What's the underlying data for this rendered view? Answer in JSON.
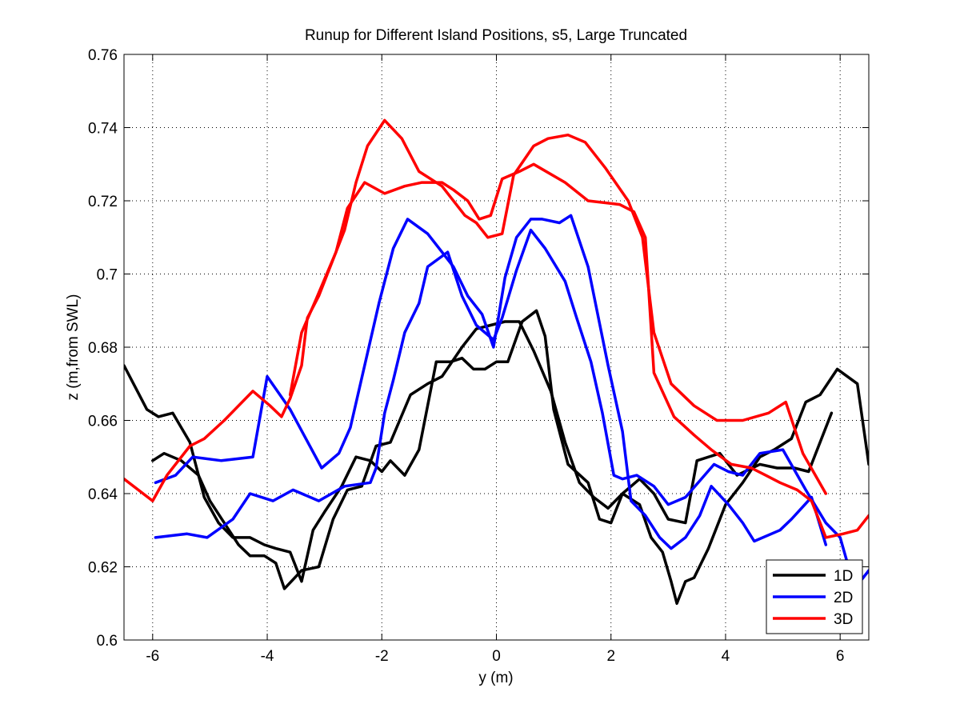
{
  "chart_data": {
    "type": "line",
    "title": "Runup for Different Island Positions, s5, Large Truncated",
    "xlabel": "y (m)",
    "ylabel": "z (m,from SWL)",
    "xlim": [
      -6.5,
      6.5
    ],
    "ylim": [
      0.6,
      0.76
    ],
    "xticks": [
      -6,
      -4,
      -2,
      0,
      2,
      4,
      6
    ],
    "xtick_labels": [
      "-6",
      "-4",
      "-2",
      "0",
      "2",
      "4",
      "6"
    ],
    "yticks": [
      0.6,
      0.62,
      0.64,
      0.66,
      0.68,
      0.7,
      0.72,
      0.74,
      0.76
    ],
    "ytick_labels": [
      "0.6",
      "0.62",
      "0.64",
      "0.66",
      "0.68",
      "0.7",
      "0.72",
      "0.74",
      "0.76"
    ],
    "grid": true,
    "legend_position": "bottom-right",
    "legend": [
      {
        "label": "1D",
        "color": "#000000"
      },
      {
        "label": "2D",
        "color": "#0000ff"
      },
      {
        "label": "3D",
        "color": "#ff0000"
      }
    ],
    "series": [
      {
        "legend": "1D",
        "color": "#000000",
        "points": [
          [
            -6.5,
            0.675
          ],
          [
            -6.3,
            0.669
          ],
          [
            -6.1,
            0.663
          ],
          [
            -5.9,
            0.661
          ],
          [
            -5.65,
            0.662
          ],
          [
            -5.35,
            0.654
          ],
          [
            -5.1,
            0.639
          ],
          [
            -4.85,
            0.632
          ],
          [
            -4.6,
            0.628
          ],
          [
            -4.3,
            0.628
          ],
          [
            -4.05,
            0.626
          ],
          [
            -3.85,
            0.625
          ],
          [
            -3.6,
            0.624
          ],
          [
            -3.4,
            0.616
          ],
          [
            -3.2,
            0.63
          ],
          [
            -3.0,
            0.635
          ],
          [
            -2.7,
            0.642
          ],
          [
            -2.45,
            0.65
          ],
          [
            -2.2,
            0.649
          ],
          [
            -2.0,
            0.646
          ],
          [
            -1.85,
            0.649
          ],
          [
            -1.6,
            0.645
          ],
          [
            -1.35,
            0.652
          ],
          [
            -1.05,
            0.676
          ],
          [
            -0.8,
            0.676
          ],
          [
            -0.6,
            0.677
          ],
          [
            -0.4,
            0.674
          ],
          [
            -0.2,
            0.674
          ],
          [
            0.0,
            0.676
          ],
          [
            0.2,
            0.676
          ],
          [
            0.45,
            0.687
          ],
          [
            0.7,
            0.69
          ],
          [
            0.85,
            0.683
          ],
          [
            1.0,
            0.663
          ],
          [
            1.25,
            0.648
          ],
          [
            1.6,
            0.643
          ],
          [
            1.8,
            0.633
          ],
          [
            2.0,
            0.632
          ],
          [
            2.2,
            0.64
          ],
          [
            2.5,
            0.637
          ],
          [
            2.7,
            0.628
          ],
          [
            2.9,
            0.624
          ],
          [
            3.05,
            0.616
          ],
          [
            3.15,
            0.61
          ],
          [
            3.3,
            0.616
          ],
          [
            3.45,
            0.617
          ],
          [
            3.7,
            0.625
          ],
          [
            4.0,
            0.637
          ],
          [
            4.3,
            0.643
          ],
          [
            4.6,
            0.65
          ],
          [
            4.85,
            0.652
          ],
          [
            5.15,
            0.655
          ],
          [
            5.4,
            0.665
          ],
          [
            5.65,
            0.667
          ],
          [
            5.95,
            0.674
          ],
          [
            6.3,
            0.67
          ],
          [
            6.5,
            0.648
          ]
        ]
      },
      {
        "legend": "1D",
        "color": "#000000",
        "points": [
          [
            -6.0,
            0.649
          ],
          [
            -5.8,
            0.651
          ],
          [
            -5.5,
            0.649
          ],
          [
            -5.2,
            0.645
          ],
          [
            -5.0,
            0.638
          ],
          [
            -4.75,
            0.632
          ],
          [
            -4.5,
            0.626
          ],
          [
            -4.3,
            0.623
          ],
          [
            -4.05,
            0.623
          ],
          [
            -3.85,
            0.621
          ],
          [
            -3.7,
            0.614
          ],
          [
            -3.4,
            0.619
          ],
          [
            -3.1,
            0.62
          ],
          [
            -2.85,
            0.633
          ],
          [
            -2.6,
            0.641
          ],
          [
            -2.35,
            0.642
          ],
          [
            -2.1,
            0.653
          ],
          [
            -1.85,
            0.654
          ],
          [
            -1.5,
            0.667
          ],
          [
            -1.2,
            0.67
          ],
          [
            -0.95,
            0.672
          ],
          [
            -0.6,
            0.68
          ],
          [
            -0.35,
            0.685
          ],
          [
            -0.1,
            0.686
          ],
          [
            0.15,
            0.687
          ],
          [
            0.4,
            0.687
          ],
          [
            0.65,
            0.679
          ],
          [
            0.95,
            0.668
          ],
          [
            1.2,
            0.654
          ],
          [
            1.45,
            0.643
          ],
          [
            1.7,
            0.639
          ],
          [
            1.95,
            0.636
          ],
          [
            2.2,
            0.64
          ],
          [
            2.5,
            0.644
          ],
          [
            2.75,
            0.64
          ],
          [
            3.0,
            0.633
          ],
          [
            3.3,
            0.632
          ],
          [
            3.5,
            0.649
          ],
          [
            3.9,
            0.651
          ],
          [
            4.2,
            0.645
          ],
          [
            4.6,
            0.648
          ],
          [
            4.9,
            0.647
          ],
          [
            5.2,
            0.647
          ],
          [
            5.45,
            0.646
          ],
          [
            5.85,
            0.662
          ]
        ]
      },
      {
        "legend": "2D",
        "color": "#0000ff",
        "points": [
          [
            -5.95,
            0.643
          ],
          [
            -5.6,
            0.645
          ],
          [
            -5.3,
            0.65
          ],
          [
            -4.8,
            0.649
          ],
          [
            -4.25,
            0.65
          ],
          [
            -4.0,
            0.672
          ],
          [
            -3.6,
            0.663
          ],
          [
            -3.05,
            0.647
          ],
          [
            -2.75,
            0.651
          ],
          [
            -2.55,
            0.658
          ],
          [
            -2.3,
            0.675
          ],
          [
            -2.05,
            0.692
          ],
          [
            -1.8,
            0.707
          ],
          [
            -1.55,
            0.715
          ],
          [
            -1.2,
            0.711
          ],
          [
            -0.95,
            0.706
          ],
          [
            -0.75,
            0.702
          ],
          [
            -0.5,
            0.694
          ],
          [
            -0.25,
            0.689
          ],
          [
            -0.05,
            0.68
          ],
          [
            0.15,
            0.699
          ],
          [
            0.35,
            0.71
          ],
          [
            0.6,
            0.715
          ],
          [
            0.8,
            0.715
          ],
          [
            1.1,
            0.714
          ],
          [
            1.3,
            0.716
          ],
          [
            1.6,
            0.702
          ],
          [
            1.95,
            0.675
          ],
          [
            2.2,
            0.657
          ],
          [
            2.35,
            0.638
          ],
          [
            2.6,
            0.634
          ],
          [
            2.85,
            0.628
          ],
          [
            3.05,
            0.625
          ],
          [
            3.3,
            0.628
          ],
          [
            3.55,
            0.634
          ],
          [
            3.75,
            0.642
          ],
          [
            4.05,
            0.637
          ],
          [
            4.3,
            0.632
          ],
          [
            4.5,
            0.627
          ],
          [
            4.95,
            0.63
          ],
          [
            5.15,
            0.633
          ],
          [
            5.5,
            0.639
          ],
          [
            5.75,
            0.626
          ]
        ]
      },
      {
        "legend": "2D",
        "color": "#0000ff",
        "points": [
          [
            -5.95,
            0.628
          ],
          [
            -5.4,
            0.629
          ],
          [
            -5.05,
            0.628
          ],
          [
            -4.6,
            0.633
          ],
          [
            -4.3,
            0.64
          ],
          [
            -3.9,
            0.638
          ],
          [
            -3.55,
            0.641
          ],
          [
            -3.1,
            0.638
          ],
          [
            -2.65,
            0.642
          ],
          [
            -2.2,
            0.643
          ],
          [
            -2.1,
            0.647
          ],
          [
            -1.95,
            0.662
          ],
          [
            -1.8,
            0.671
          ],
          [
            -1.6,
            0.684
          ],
          [
            -1.35,
            0.692
          ],
          [
            -1.2,
            0.702
          ],
          [
            -0.85,
            0.706
          ],
          [
            -0.6,
            0.694
          ],
          [
            -0.35,
            0.686
          ],
          [
            -0.05,
            0.682
          ],
          [
            0.1,
            0.688
          ],
          [
            0.35,
            0.701
          ],
          [
            0.6,
            0.712
          ],
          [
            0.85,
            0.707
          ],
          [
            1.2,
            0.698
          ],
          [
            1.4,
            0.688
          ],
          [
            1.65,
            0.676
          ],
          [
            1.85,
            0.662
          ],
          [
            2.05,
            0.645
          ],
          [
            2.2,
            0.644
          ],
          [
            2.45,
            0.645
          ],
          [
            2.75,
            0.642
          ],
          [
            3.0,
            0.637
          ],
          [
            3.3,
            0.639
          ],
          [
            3.8,
            0.648
          ],
          [
            4.05,
            0.646
          ],
          [
            4.3,
            0.645
          ],
          [
            4.6,
            0.651
          ],
          [
            5.0,
            0.652
          ],
          [
            5.4,
            0.641
          ],
          [
            5.75,
            0.632
          ],
          [
            6.0,
            0.628
          ],
          [
            6.2,
            0.617
          ],
          [
            6.35,
            0.616
          ],
          [
            6.5,
            0.619
          ]
        ]
      },
      {
        "legend": "3D",
        "color": "#ff0000",
        "points": [
          [
            -6.5,
            0.644
          ],
          [
            -6.0,
            0.638
          ],
          [
            -5.75,
            0.645
          ],
          [
            -5.35,
            0.653
          ],
          [
            -5.1,
            0.655
          ],
          [
            -4.75,
            0.66
          ],
          [
            -4.25,
            0.668
          ],
          [
            -3.95,
            0.664
          ],
          [
            -3.75,
            0.661
          ],
          [
            -3.6,
            0.666
          ],
          [
            -3.4,
            0.675
          ],
          [
            -3.3,
            0.688
          ],
          [
            -3.1,
            0.694
          ],
          [
            -2.85,
            0.704
          ],
          [
            -2.65,
            0.712
          ],
          [
            -2.45,
            0.725
          ],
          [
            -2.25,
            0.735
          ],
          [
            -1.95,
            0.742
          ],
          [
            -1.65,
            0.737
          ],
          [
            -1.35,
            0.728
          ],
          [
            -0.95,
            0.724
          ],
          [
            -0.55,
            0.716
          ],
          [
            -0.35,
            0.714
          ],
          [
            -0.15,
            0.71
          ],
          [
            0.1,
            0.711
          ],
          [
            0.3,
            0.727
          ],
          [
            0.65,
            0.735
          ],
          [
            0.9,
            0.737
          ],
          [
            1.25,
            0.738
          ],
          [
            1.55,
            0.736
          ],
          [
            1.9,
            0.729
          ],
          [
            2.3,
            0.72
          ],
          [
            2.55,
            0.71
          ],
          [
            2.75,
            0.684
          ],
          [
            3.05,
            0.67
          ],
          [
            3.45,
            0.664
          ],
          [
            3.85,
            0.66
          ],
          [
            4.3,
            0.66
          ],
          [
            4.75,
            0.662
          ],
          [
            5.05,
            0.665
          ],
          [
            5.35,
            0.651
          ],
          [
            5.75,
            0.64
          ]
        ]
      },
      {
        "legend": "3D",
        "color": "#ff0000",
        "points": [
          [
            -3.6,
            0.667
          ],
          [
            -3.4,
            0.684
          ],
          [
            -3.15,
            0.693
          ],
          [
            -2.8,
            0.706
          ],
          [
            -2.6,
            0.718
          ],
          [
            -2.3,
            0.725
          ],
          [
            -1.95,
            0.722
          ],
          [
            -1.6,
            0.724
          ],
          [
            -1.3,
            0.725
          ],
          [
            -0.95,
            0.725
          ],
          [
            -0.75,
            0.723
          ],
          [
            -0.5,
            0.72
          ],
          [
            -0.3,
            0.715
          ],
          [
            -0.1,
            0.716
          ],
          [
            0.1,
            0.726
          ],
          [
            0.4,
            0.728
          ],
          [
            0.65,
            0.73
          ],
          [
            1.2,
            0.725
          ],
          [
            1.6,
            0.72
          ],
          [
            2.15,
            0.719
          ],
          [
            2.4,
            0.717
          ],
          [
            2.6,
            0.71
          ],
          [
            2.75,
            0.673
          ],
          [
            3.1,
            0.661
          ],
          [
            3.45,
            0.656
          ],
          [
            3.75,
            0.652
          ],
          [
            4.1,
            0.648
          ],
          [
            4.45,
            0.647
          ],
          [
            4.7,
            0.645
          ],
          [
            4.95,
            0.643
          ],
          [
            5.25,
            0.641
          ],
          [
            5.5,
            0.638
          ],
          [
            5.75,
            0.628
          ],
          [
            6.05,
            0.629
          ],
          [
            6.3,
            0.63
          ],
          [
            6.5,
            0.634
          ]
        ]
      }
    ]
  }
}
